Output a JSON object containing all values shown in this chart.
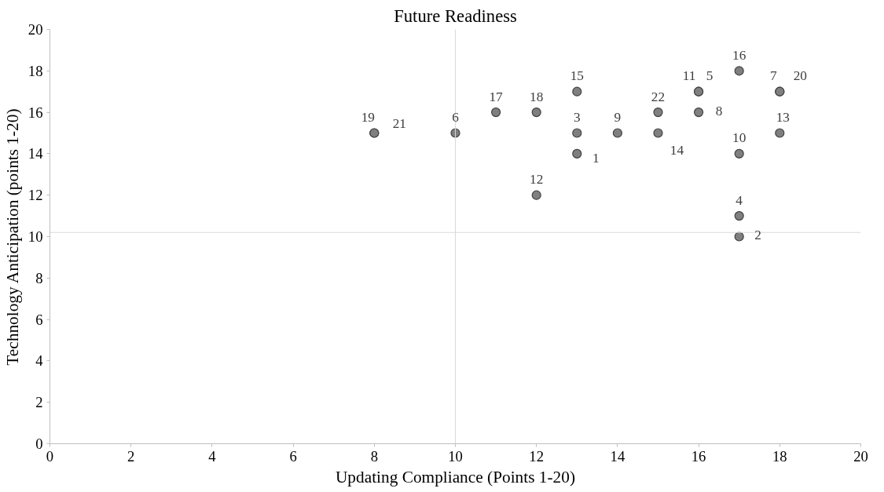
{
  "chart_data": {
    "type": "scatter",
    "title": "Future Readiness",
    "xlabel": "Updating Compliance (Points 1-20)",
    "ylabel": "Technology Anticipation (points 1-20)",
    "x": [
      8,
      8,
      10,
      11,
      12,
      12,
      13,
      13,
      13,
      14,
      15,
      15,
      16,
      16,
      16,
      17,
      17,
      17,
      17,
      18,
      18,
      18
    ],
    "series": [
      {
        "color": "#7f7f7f",
        "values": [
          15,
          15,
          15,
          16,
          16,
          12,
          17,
          15,
          14,
          15,
          16,
          15,
          17,
          17,
          16,
          18,
          14,
          11,
          10,
          17,
          17,
          15
        ]
      }
    ],
    "marker": "circle",
    "grid": false,
    "xlim": [
      0,
      20
    ],
    "xticks": [
      0,
      2,
      4,
      6,
      8,
      10,
      12,
      14,
      16,
      18,
      20
    ],
    "ylim": [
      0,
      20
    ],
    "yticks": [
      0,
      2,
      4,
      6,
      8,
      10,
      12,
      14,
      16,
      18,
      20
    ],
    "ref_lines": [
      {
        "axis": "x",
        "value": 10,
        "label": null,
        "color": "#d9d9d9"
      },
      {
        "axis": "y",
        "value": 10.2,
        "label": null,
        "color": "#d9d9d9"
      }
    ],
    "annotations": [
      {
        "text": "19",
        "x": 8,
        "y": 15
      },
      {
        "text": "21",
        "x": 8,
        "y": 15
      },
      {
        "text": "6",
        "x": 10,
        "y": 15
      },
      {
        "text": "17",
        "x": 11,
        "y": 16
      },
      {
        "text": "18",
        "x": 12,
        "y": 16
      },
      {
        "text": "12",
        "x": 12,
        "y": 12
      },
      {
        "text": "15",
        "x": 13,
        "y": 17
      },
      {
        "text": "3",
        "x": 13,
        "y": 15
      },
      {
        "text": "1",
        "x": 13,
        "y": 14
      },
      {
        "text": "9",
        "x": 14,
        "y": 15
      },
      {
        "text": "22",
        "x": 15,
        "y": 16
      },
      {
        "text": "14",
        "x": 15,
        "y": 15
      },
      {
        "text": "11",
        "x": 16,
        "y": 17
      },
      {
        "text": "5",
        "x": 16,
        "y": 17
      },
      {
        "text": "8",
        "x": 16,
        "y": 16
      },
      {
        "text": "16",
        "x": 17,
        "y": 18
      },
      {
        "text": "10",
        "x": 17,
        "y": 14
      },
      {
        "text": "4",
        "x": 17,
        "y": 11
      },
      {
        "text": "2",
        "x": 17,
        "y": 10
      },
      {
        "text": "7",
        "x": 18,
        "y": 17
      },
      {
        "text": "20",
        "x": 18,
        "y": 17
      },
      {
        "text": "13",
        "x": 18,
        "y": 15
      }
    ]
  }
}
